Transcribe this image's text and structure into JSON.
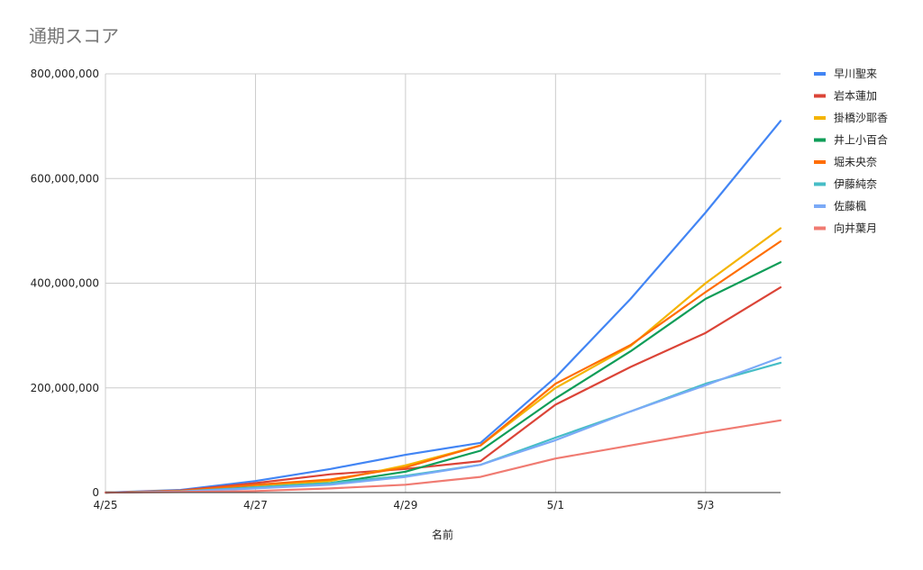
{
  "chart_data": {
    "type": "line",
    "title": "通期スコア",
    "xlabel": "名前",
    "ylabel": "",
    "x": [
      "4/25",
      "4/26",
      "4/27",
      "4/28",
      "4/29",
      "4/30",
      "5/1",
      "5/2",
      "5/3",
      "5/4"
    ],
    "x_tick_labels": [
      "4/25",
      "4/27",
      "4/29",
      "5/1",
      "5/3"
    ],
    "y_tick_labels": [
      "0",
      "200,000,000",
      "400,000,000",
      "600,000,000",
      "800,000,000"
    ],
    "ylim": [
      0,
      800000000
    ],
    "grid": true,
    "legend_position": "right",
    "series": [
      {
        "name": "早川聖来",
        "color": "#4285f4",
        "values": [
          0,
          5000000,
          22000000,
          45000000,
          72000000,
          95000000,
          220000000,
          370000000,
          535000000,
          710000000
        ]
      },
      {
        "name": "岩本蓮加",
        "color": "#db4437",
        "values": [
          0,
          4000000,
          18000000,
          35000000,
          45000000,
          60000000,
          168000000,
          240000000,
          305000000,
          392000000
        ]
      },
      {
        "name": "掛橋沙耶香",
        "color": "#f4b400",
        "values": [
          0,
          3000000,
          12000000,
          22000000,
          52000000,
          90000000,
          200000000,
          280000000,
          400000000,
          505000000
        ]
      },
      {
        "name": "井上小百合",
        "color": "#0f9d58",
        "values": [
          0,
          3000000,
          10000000,
          18000000,
          40000000,
          80000000,
          180000000,
          270000000,
          370000000,
          440000000
        ]
      },
      {
        "name": "堀未央奈",
        "color": "#ff6d01",
        "values": [
          0,
          3000000,
          15000000,
          25000000,
          48000000,
          90000000,
          208000000,
          282000000,
          383000000,
          480000000
        ]
      },
      {
        "name": "伊藤純奈",
        "color": "#46bdc6",
        "values": [
          0,
          2000000,
          10000000,
          18000000,
          32000000,
          53000000,
          105000000,
          155000000,
          208000000,
          248000000
        ]
      },
      {
        "name": "佐藤楓",
        "color": "#7baaf7",
        "values": [
          0,
          2000000,
          8000000,
          15000000,
          30000000,
          53000000,
          100000000,
          155000000,
          205000000,
          258000000
        ]
      },
      {
        "name": "向井葉月",
        "color": "#f07b72",
        "values": [
          0,
          1000000,
          3000000,
          8000000,
          15000000,
          30000000,
          65000000,
          90000000,
          115000000,
          138000000
        ]
      }
    ]
  }
}
